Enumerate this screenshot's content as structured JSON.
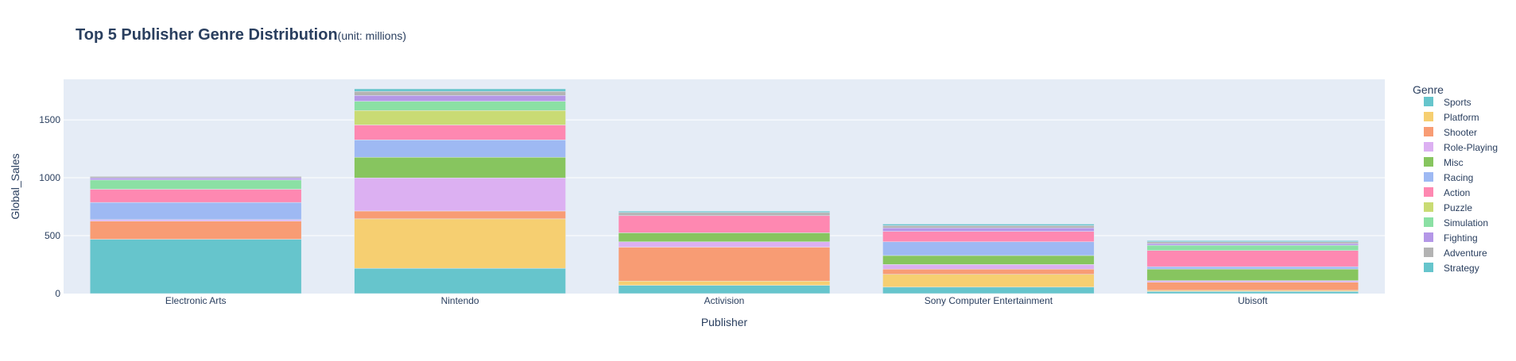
{
  "chart_data": {
    "type": "bar",
    "stacked": true,
    "title": "Top 5 Publisher Genre Distribution",
    "subtitle": "(unit: millions)",
    "xlabel": "Publisher",
    "ylabel": "Global_Sales",
    "ylim": [
      0,
      1850
    ],
    "yticks": [
      0,
      500,
      1000,
      1500
    ],
    "grid": true,
    "legend_title": "Genre",
    "legend_position": "right",
    "categories": [
      "Electronic Arts",
      "Nintendo",
      "Activision",
      "Sony Computer Entertainment",
      "Ubisoft"
    ],
    "series": [
      {
        "name": "Sports",
        "color": "#66C5CC",
        "values": [
          469,
          218,
          71,
          56,
          18
        ]
      },
      {
        "name": "Platform",
        "color": "#F6CF71",
        "values": [
          0,
          427,
          37,
          110,
          10
        ]
      },
      {
        "name": "Shooter",
        "color": "#F89C74",
        "values": [
          157,
          68,
          293,
          45,
          70
        ]
      },
      {
        "name": "Role-Playing",
        "color": "#DCB0F2",
        "values": [
          13,
          286,
          46,
          40,
          14
        ]
      },
      {
        "name": "Misc",
        "color": "#87C55F",
        "values": [
          0,
          178,
          78,
          78,
          100
        ]
      },
      {
        "name": "Racing",
        "color": "#9EB9F3",
        "values": [
          148,
          150,
          0,
          118,
          20
        ]
      },
      {
        "name": "Action",
        "color": "#FE88B1",
        "values": [
          114,
          129,
          148,
          90,
          140
        ]
      },
      {
        "name": "Puzzle",
        "color": "#C9DB74",
        "values": [
          0,
          125,
          0,
          0,
          0
        ]
      },
      {
        "name": "Simulation",
        "color": "#8BE0A4",
        "values": [
          80,
          80,
          0,
          0,
          45
        ]
      },
      {
        "name": "Fighting",
        "color": "#B497E7",
        "values": [
          18,
          50,
          0,
          30,
          15
        ]
      },
      {
        "name": "Adventure",
        "color": "#B3B3B3",
        "values": [
          12,
          35,
          27,
          20,
          15
        ]
      },
      {
        "name": "Strategy",
        "color": "#66C5CC",
        "values": [
          0,
          22,
          12,
          13,
          10
        ]
      }
    ]
  }
}
